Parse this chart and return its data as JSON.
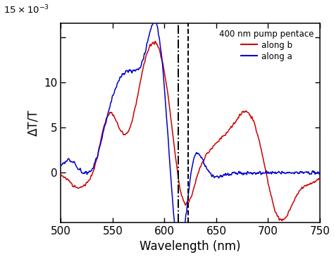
{
  "xlabel": "Wavelength (nm)",
  "ylabel": "ΔT/T",
  "xlim": [
    500,
    750
  ],
  "ylim": [
    -0.0055,
    0.0165
  ],
  "vline_dashdot": 613,
  "vline_dashed": 623,
  "legend_title": "400 nm pump pentace",
  "legend_along_b": "along b",
  "legend_along_a": "along a",
  "color_b": "#cc0000",
  "color_a": "#0000cc",
  "ytick_vals": [
    0.0,
    0.005,
    0.01,
    0.015
  ],
  "ytick_labels": [
    "0",
    "5",
    "10",
    ""
  ],
  "xtick_vals": [
    500,
    550,
    600,
    650,
    700,
    750
  ]
}
